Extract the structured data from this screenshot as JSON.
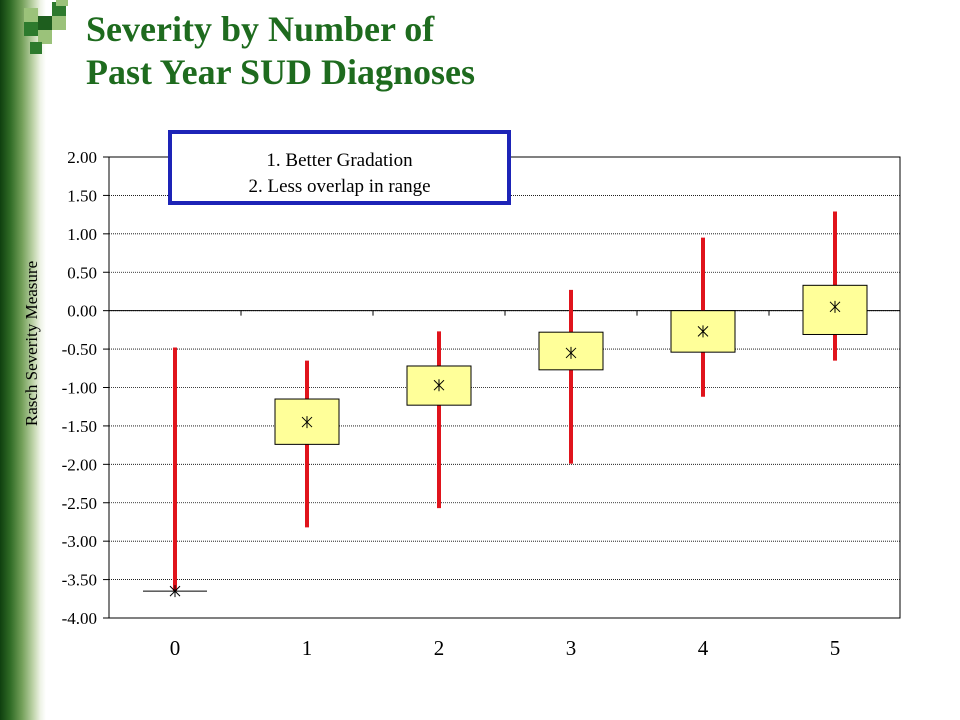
{
  "title_line1": "Severity by Number of",
  "title_line2": "Past Year SUD Diagnoses",
  "annotation": {
    "line1": "1. Better Gradation",
    "line2": "2. Less overlap in range"
  },
  "colors": {
    "title": "#1e6b1e",
    "range_line": "#e0141c",
    "box_fill": "#ffff99",
    "annotation_border": "#1d24b7"
  },
  "chart_data": {
    "type": "box",
    "title": "Severity by Number of Past Year SUD Diagnoses",
    "xlabel": "",
    "ylabel": "Rasch Severity Measure",
    "categories": [
      "0",
      "1",
      "2",
      "3",
      "4",
      "5"
    ],
    "ylim": [
      -4.0,
      2.0
    ],
    "yticks": [
      "2.00",
      "1.50",
      "1.00",
      "0.50",
      "0.00",
      "-0.50",
      "-1.00",
      "-1.50",
      "-2.00",
      "-2.50",
      "-3.00",
      "-3.50",
      "-4.00"
    ],
    "ytick_values": [
      2.0,
      1.5,
      1.0,
      0.5,
      0.0,
      -0.5,
      -1.0,
      -1.5,
      -2.0,
      -2.5,
      -3.0,
      -3.5,
      -4.0
    ],
    "grid": true,
    "series": [
      {
        "x": "0",
        "min": -3.65,
        "max": -0.48,
        "q1": -3.65,
        "q3": -3.65,
        "mean": -3.65
      },
      {
        "x": "1",
        "min": -2.82,
        "max": -0.65,
        "q1": -1.74,
        "q3": -1.15,
        "mean": -1.45
      },
      {
        "x": "2",
        "min": -2.57,
        "max": -0.27,
        "q1": -1.23,
        "q3": -0.72,
        "mean": -0.97
      },
      {
        "x": "3",
        "min": -1.99,
        "max": 0.27,
        "q1": -0.77,
        "q3": -0.28,
        "mean": -0.55
      },
      {
        "x": "4",
        "min": -1.12,
        "max": 0.95,
        "q1": -0.54,
        "q3": 0.0,
        "mean": -0.27
      },
      {
        "x": "5",
        "min": -0.65,
        "max": 1.29,
        "q1": -0.31,
        "q3": 0.33,
        "mean": 0.05
      }
    ]
  }
}
